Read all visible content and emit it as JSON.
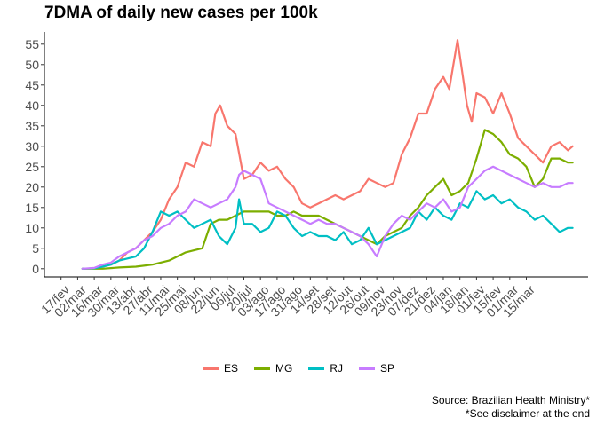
{
  "chart_data": {
    "type": "line",
    "title": "7DMA of daily new cases per 100k",
    "xlabel": "",
    "ylabel": "",
    "ylim": [
      -2,
      58
    ],
    "y_ticks": [
      0,
      5,
      10,
      15,
      20,
      25,
      30,
      35,
      40,
      45,
      50,
      55
    ],
    "x_tick_labels": [
      "17/fev",
      "02/mar",
      "16/mar",
      "30/mar",
      "13/abr",
      "27/abr",
      "11/mai",
      "25/mai",
      "08/jun",
      "22/jun",
      "06/jul",
      "20/jul",
      "03/ago",
      "17/ago",
      "31/ago",
      "14/set",
      "28/set",
      "12/out",
      "26/out",
      "09/nov",
      "23/nov",
      "07/dez",
      "21/dez",
      "04/jan",
      "18/jan",
      "01/fev",
      "15/fev",
      "01/mar",
      "15/mar"
    ],
    "legend_position": "bottom",
    "grid": false,
    "x_unit": "days",
    "series": [
      {
        "name": "ES",
        "color": "#F8766D",
        "points": [
          [
            18,
            0
          ],
          [
            28,
            0.1
          ],
          [
            35,
            0.5
          ],
          [
            42,
            1
          ],
          [
            49,
            2
          ],
          [
            56,
            4
          ],
          [
            63,
            5
          ],
          [
            70,
            7
          ],
          [
            77,
            9
          ],
          [
            84,
            12
          ],
          [
            91,
            17
          ],
          [
            98,
            20
          ],
          [
            105,
            26
          ],
          [
            112,
            25
          ],
          [
            119,
            31
          ],
          [
            126,
            30
          ],
          [
            130,
            38
          ],
          [
            134,
            40
          ],
          [
            140,
            35
          ],
          [
            147,
            33
          ],
          [
            154,
            22
          ],
          [
            161,
            23
          ],
          [
            168,
            26
          ],
          [
            175,
            24
          ],
          [
            182,
            25
          ],
          [
            189,
            22
          ],
          [
            196,
            20
          ],
          [
            203,
            16
          ],
          [
            210,
            15
          ],
          [
            217,
            16
          ],
          [
            224,
            17
          ],
          [
            231,
            18
          ],
          [
            238,
            17
          ],
          [
            245,
            18
          ],
          [
            252,
            19
          ],
          [
            259,
            22
          ],
          [
            266,
            21
          ],
          [
            273,
            20
          ],
          [
            280,
            21
          ],
          [
            287,
            28
          ],
          [
            294,
            32
          ],
          [
            301,
            38
          ],
          [
            308,
            38
          ],
          [
            315,
            44
          ],
          [
            322,
            47
          ],
          [
            327,
            44
          ],
          [
            334,
            56
          ],
          [
            338,
            48
          ],
          [
            342,
            40
          ],
          [
            346,
            36
          ],
          [
            350,
            43
          ],
          [
            357,
            42
          ],
          [
            364,
            38
          ],
          [
            371,
            43
          ],
          [
            378,
            38
          ],
          [
            385,
            32
          ],
          [
            392,
            30
          ],
          [
            399,
            28
          ],
          [
            406,
            26
          ],
          [
            413,
            30
          ],
          [
            420,
            31
          ],
          [
            427,
            29
          ],
          [
            431,
            30
          ]
        ]
      },
      {
        "name": "MG",
        "color": "#7CAE00",
        "points": [
          [
            18,
            0
          ],
          [
            35,
            0
          ],
          [
            49,
            0.3
          ],
          [
            63,
            0.5
          ],
          [
            77,
            1
          ],
          [
            91,
            2
          ],
          [
            98,
            3
          ],
          [
            105,
            4
          ],
          [
            112,
            4.5
          ],
          [
            119,
            5
          ],
          [
            126,
            11
          ],
          [
            133,
            12
          ],
          [
            140,
            12
          ],
          [
            147,
            13
          ],
          [
            154,
            14
          ],
          [
            161,
            14
          ],
          [
            168,
            14
          ],
          [
            175,
            14
          ],
          [
            182,
            13
          ],
          [
            189,
            13
          ],
          [
            196,
            14
          ],
          [
            203,
            13
          ],
          [
            210,
            13
          ],
          [
            217,
            13
          ],
          [
            224,
            12
          ],
          [
            231,
            11
          ],
          [
            238,
            10
          ],
          [
            245,
            9
          ],
          [
            252,
            8
          ],
          [
            259,
            7
          ],
          [
            266,
            6
          ],
          [
            273,
            8
          ],
          [
            280,
            9
          ],
          [
            287,
            10
          ],
          [
            294,
            13
          ],
          [
            301,
            15
          ],
          [
            308,
            18
          ],
          [
            315,
            20
          ],
          [
            322,
            22
          ],
          [
            329,
            18
          ],
          [
            336,
            19
          ],
          [
            343,
            21
          ],
          [
            350,
            27
          ],
          [
            357,
            34
          ],
          [
            364,
            33
          ],
          [
            371,
            31
          ],
          [
            378,
            28
          ],
          [
            385,
            27
          ],
          [
            392,
            25
          ],
          [
            399,
            20
          ],
          [
            406,
            22
          ],
          [
            413,
            27
          ],
          [
            420,
            27
          ],
          [
            427,
            26
          ],
          [
            431,
            26
          ]
        ]
      },
      {
        "name": "RJ",
        "color": "#00BFC4",
        "points": [
          [
            18,
            0
          ],
          [
            28,
            0.1
          ],
          [
            35,
            0.5
          ],
          [
            42,
            1
          ],
          [
            49,
            2
          ],
          [
            56,
            2.5
          ],
          [
            63,
            3
          ],
          [
            70,
            5
          ],
          [
            77,
            9
          ],
          [
            84,
            14
          ],
          [
            91,
            13
          ],
          [
            98,
            14
          ],
          [
            105,
            12
          ],
          [
            112,
            10
          ],
          [
            119,
            11
          ],
          [
            126,
            12
          ],
          [
            133,
            8
          ],
          [
            140,
            6
          ],
          [
            147,
            10
          ],
          [
            150,
            17
          ],
          [
            154,
            11
          ],
          [
            161,
            11
          ],
          [
            168,
            9
          ],
          [
            175,
            10
          ],
          [
            182,
            14
          ],
          [
            189,
            13
          ],
          [
            196,
            10
          ],
          [
            203,
            8
          ],
          [
            210,
            9
          ],
          [
            217,
            8
          ],
          [
            224,
            8
          ],
          [
            231,
            7
          ],
          [
            238,
            9
          ],
          [
            245,
            6
          ],
          [
            252,
            7
          ],
          [
            259,
            10
          ],
          [
            266,
            6
          ],
          [
            273,
            7
          ],
          [
            280,
            8
          ],
          [
            287,
            9
          ],
          [
            294,
            10
          ],
          [
            301,
            14
          ],
          [
            308,
            12
          ],
          [
            315,
            15
          ],
          [
            322,
            13
          ],
          [
            329,
            12
          ],
          [
            336,
            16
          ],
          [
            343,
            15
          ],
          [
            350,
            19
          ],
          [
            357,
            17
          ],
          [
            364,
            18
          ],
          [
            371,
            16
          ],
          [
            378,
            17
          ],
          [
            385,
            15
          ],
          [
            392,
            14
          ],
          [
            399,
            12
          ],
          [
            406,
            13
          ],
          [
            413,
            11
          ],
          [
            420,
            9
          ],
          [
            427,
            10
          ],
          [
            431,
            10
          ]
        ]
      },
      {
        "name": "SP",
        "color": "#C77CFF",
        "points": [
          [
            18,
            0
          ],
          [
            28,
            0.2
          ],
          [
            35,
            1
          ],
          [
            42,
            1.5
          ],
          [
            49,
            3
          ],
          [
            56,
            4
          ],
          [
            63,
            5
          ],
          [
            70,
            7
          ],
          [
            77,
            8
          ],
          [
            84,
            10
          ],
          [
            91,
            11
          ],
          [
            98,
            13
          ],
          [
            105,
            14
          ],
          [
            112,
            17
          ],
          [
            119,
            16
          ],
          [
            126,
            15
          ],
          [
            133,
            16
          ],
          [
            140,
            17
          ],
          [
            147,
            20
          ],
          [
            150,
            23
          ],
          [
            154,
            24
          ],
          [
            161,
            23
          ],
          [
            168,
            22
          ],
          [
            175,
            16
          ],
          [
            182,
            15
          ],
          [
            189,
            14
          ],
          [
            196,
            13
          ],
          [
            203,
            12
          ],
          [
            210,
            11
          ],
          [
            217,
            12
          ],
          [
            224,
            11
          ],
          [
            231,
            11
          ],
          [
            238,
            10
          ],
          [
            245,
            9
          ],
          [
            252,
            8
          ],
          [
            259,
            6
          ],
          [
            266,
            3
          ],
          [
            273,
            8
          ],
          [
            280,
            11
          ],
          [
            287,
            13
          ],
          [
            294,
            12
          ],
          [
            301,
            14
          ],
          [
            308,
            16
          ],
          [
            315,
            15
          ],
          [
            322,
            17
          ],
          [
            329,
            14
          ],
          [
            336,
            15
          ],
          [
            343,
            20
          ],
          [
            350,
            22
          ],
          [
            357,
            24
          ],
          [
            364,
            25
          ],
          [
            371,
            24
          ],
          [
            378,
            23
          ],
          [
            385,
            22
          ],
          [
            392,
            21
          ],
          [
            399,
            20
          ],
          [
            406,
            21
          ],
          [
            413,
            20
          ],
          [
            420,
            20
          ],
          [
            427,
            21
          ],
          [
            431,
            21
          ]
        ]
      }
    ]
  },
  "caption": {
    "line1": "Source: Brazilian Health Ministry*",
    "line2": "*See disclaimer at the end"
  }
}
